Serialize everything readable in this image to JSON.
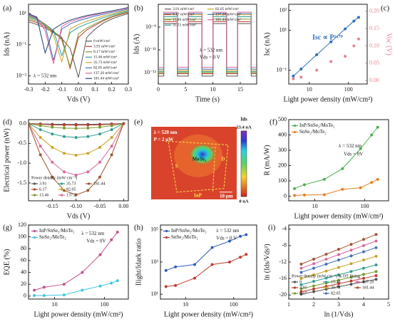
{
  "chart_data": [
    {
      "type": "line",
      "label": "(a)",
      "xlabel": "Vds (V)",
      "ylabel": "Ids (nA)",
      "xlim": [
        -0.3,
        0.3
      ],
      "xticks": [
        -0.3,
        -0.2,
        -0.1,
        {
          "value": 0,
          "label": "0.0"
        },
        0.1,
        0.2,
        0.3
      ],
      "yscale": "log",
      "ylim": [
        0.0003,
        40
      ],
      "yticks": [
        {
          "value": 0.001,
          "label": "10⁻³"
        },
        {
          "value": 0.1,
          "label": "10⁻¹"
        },
        {
          "value": 10,
          "label": "10¹"
        }
      ],
      "legend": "lower right",
      "annotations": [
        "λ = 532 nm"
      ],
      "x": [
        -0.3,
        -0.25,
        -0.2,
        -0.15,
        -0.1,
        -0.05,
        0,
        0.05,
        0.1,
        0.15,
        0.2,
        0.25,
        0.3
      ],
      "series": [
        {
          "name": "0 mW/cm²",
          "color": "#555555",
          "values": [
            3,
            2,
            1.2,
            0.6,
            0.25,
            0.06,
            0.0008,
            0.3,
            1,
            2.5,
            4.5,
            7,
            10
          ]
        },
        {
          "name": "3.91 mW/cm²",
          "color": "#c0392b",
          "values": [
            4,
            2.6,
            1.5,
            0.7,
            0.3,
            0.003,
            0.3,
            0.9,
            1.8,
            3.5,
            6,
            8.5,
            12
          ]
        },
        {
          "name": "6.17 mW/cm²",
          "color": "#7a9a2e",
          "values": [
            5,
            3.2,
            1.8,
            0.8,
            0.2,
            0.004,
            0.5,
            1.2,
            2.2,
            4,
            6.5,
            9.5,
            13
          ]
        },
        {
          "name": "15.46 mW/cm²",
          "color": "#2a9d8f",
          "values": [
            6,
            4,
            2.2,
            0.8,
            0.02,
            0.6,
            1.3,
            2.2,
            3.5,
            5.5,
            8,
            11,
            15
          ]
        },
        {
          "name": "35.73 mW/cm²",
          "color": "#c9a227",
          "values": [
            7,
            4.5,
            2.2,
            0.4,
            0.008,
            1,
            2,
            3.2,
            4.8,
            7,
            9.5,
            13,
            17
          ]
        },
        {
          "name": "82.05 mW/cm²",
          "color": "#3f6fb5",
          "values": [
            8,
            5,
            1.8,
            0.01,
            1,
            2.2,
            3.5,
            5,
            7,
            9,
            12,
            15,
            20
          ]
        },
        {
          "name": "137.20 mW/cm²",
          "color": "#d9669b",
          "values": [
            9,
            5.5,
            0.8,
            0.006,
            1.5,
            3,
            4.5,
            6.5,
            8.5,
            11,
            14,
            18,
            23
          ]
        },
        {
          "name": "181.44 mW/cm²",
          "color": "#1f3f7a",
          "values": [
            10,
            6,
            0.03,
            1,
            2.2,
            3.8,
            5.5,
            7.5,
            9.5,
            12,
            15,
            19,
            25
          ]
        }
      ]
    },
    {
      "type": "line",
      "label": "(b)",
      "xlabel": "Time (s)",
      "ylabel": "Ids (A)",
      "xlim": [
        0,
        18
      ],
      "xticks": [
        0,
        5,
        10,
        15
      ],
      "yscale": "log",
      "ylim": [
        1e-14,
        1e-07
      ],
      "yticks": [
        {
          "value": 1e-13,
          "label": "10⁻¹³"
        },
        {
          "value": 1e-11,
          "label": "10⁻¹¹"
        },
        {
          "value": 1e-09,
          "label": "10⁻⁹"
        }
      ],
      "legend": "upper center",
      "annotations": [
        "λ = 532 nm",
        "Vds = 0 V"
      ],
      "x": [
        0,
        1,
        1,
        3.5,
        3.5,
        5.5,
        5.5,
        8,
        8,
        10,
        10,
        12.5,
        12.5,
        14.5,
        14.5,
        17,
        17,
        18
      ],
      "series": [
        {
          "name": "3.91 mW/cm²",
          "color": "#555555",
          "values": [
            5e-14,
            5e-14,
            2e-09,
            2e-09,
            5e-14,
            5e-14,
            2e-09,
            2e-09,
            5e-14,
            5e-14,
            2e-09,
            2e-09,
            5e-14,
            5e-14,
            2e-09,
            2e-09,
            5e-14,
            5e-14
          ]
        },
        {
          "name": "6.17 mW/cm²",
          "color": "#c0392b",
          "values": [
            8e-14,
            8e-14,
            3e-09,
            3e-09,
            8e-14,
            8e-14,
            3e-09,
            3e-09,
            8e-14,
            8e-14,
            3e-09,
            3e-09,
            8e-14,
            8e-14,
            3e-09,
            3e-09,
            8e-14,
            8e-14
          ]
        },
        {
          "name": "15.46 mW/cm²",
          "color": "#7a9a2e",
          "values": [
            1e-13,
            1e-13,
            5e-09,
            5e-09,
            1e-13,
            1e-13,
            5e-09,
            5e-09,
            1e-13,
            1e-13,
            5e-09,
            5e-09,
            1e-13,
            1e-13,
            5e-09,
            5e-09,
            1e-13,
            1e-13
          ]
        },
        {
          "name": "35.72 mW/cm²",
          "color": "#2a9d8f",
          "values": [
            1.2e-13,
            1.2e-13,
            8e-09,
            8e-09,
            1.2e-13,
            1.2e-13,
            8e-09,
            8e-09,
            1.2e-13,
            1.2e-13,
            8e-09,
            8e-09,
            1.2e-13,
            1.2e-13,
            8e-09,
            8e-09,
            1.2e-13,
            1.2e-13
          ]
        },
        {
          "name": "82.05 mW/cm²",
          "color": "#c9a227",
          "values": [
            1.5e-13,
            1.5e-13,
            1.2e-08,
            1.2e-08,
            1.5e-13,
            1.5e-13,
            1.2e-08,
            1.2e-08,
            1.5e-13,
            1.5e-13,
            1.2e-08,
            1.2e-08,
            1.5e-13,
            1.5e-13,
            1.2e-08,
            1.2e-08,
            1.5e-13,
            1.5e-13
          ]
        },
        {
          "name": "137.20 mW/cm²",
          "color": "#3f6fb5",
          "values": [
            2e-13,
            2e-13,
            1.5e-08,
            1.5e-08,
            2e-13,
            2e-13,
            1.5e-08,
            1.5e-08,
            2e-13,
            2e-13,
            1.5e-08,
            1.5e-08,
            2e-13,
            2e-13,
            1.5e-08,
            1.5e-08,
            2e-13,
            2e-13
          ]
        },
        {
          "name": "181.44 mW/cm²",
          "color": "#d9669b",
          "values": [
            3e-13,
            3e-13,
            2e-08,
            2e-08,
            3e-13,
            3e-13,
            2e-08,
            2e-08,
            3e-13,
            3e-13,
            2e-08,
            2e-08,
            3e-13,
            3e-13,
            2e-08,
            2e-08,
            3e-13,
            3e-13
          ]
        }
      ]
    },
    {
      "type": "line",
      "label": "(c)",
      "xlabel": "Light power density (mW/cm²)",
      "ylabel": "Isc (nA)",
      "y2label": "Voc (V)",
      "xscale": "log",
      "xlim": [
        3,
        300
      ],
      "xticks": [
        10,
        100
      ],
      "yscale": "log",
      "ylim": [
        0.02,
        200
      ],
      "yticks": [
        {
          "value": 0.1,
          "label": "10⁻¹"
        },
        {
          "value": 10,
          "label": "10¹"
        },
        {
          "value": 100,
          "label": "10²"
        }
      ],
      "y2lim": [
        -0.01,
        0.22
      ],
      "y2ticks": [
        {
          "value": 0,
          "label": "0.00"
        },
        0.05,
        {
          "value": 0.1,
          "label": "0.10"
        },
        0.15,
        {
          "value": 0.2,
          "label": "0.20"
        }
      ],
      "y2color": "#e8808a",
      "annotations": [
        "Isc ∝ P¹·⁷⁹"
      ],
      "annotation_color": "#2a6ebb",
      "x": [
        3.91,
        6.17,
        15.46,
        35.73,
        82.05,
        137.2,
        181.44
      ],
      "series": [
        {
          "color": "#2a6ebb",
          "marker": true,
          "values": [
            0.05,
            0.113,
            0.59,
            2.6,
            11.6,
            28.8,
            44.1
          ]
        },
        {
          "color": "#e8808a",
          "marker": true,
          "line": false,
          "axis": "y2",
          "values": [
            0.005,
            0.01,
            0.03,
            0.055,
            0.07,
            0.1,
            0.12
          ]
        }
      ]
    },
    {
      "type": "line",
      "label": "(d)",
      "xlabel": "Vds (V)",
      "ylabel": "Electrical power (nW)",
      "xlim": [
        -0.2,
        0.01
      ],
      "xticks": [
        -0.15,
        {
          "value": -0.1,
          "label": "-0.10"
        },
        -0.05,
        {
          "value": 0,
          "label": "0.00"
        }
      ],
      "ylim": [
        -1.95,
        0.1
      ],
      "yticks": [
        {
          "value": 0,
          "label": "0.0"
        },
        -0.5,
        {
          "value": -1,
          "label": "-1.0"
        },
        -1.5
      ],
      "legend": "lower left",
      "legend_title": "Power density (mW·cm⁻²)",
      "x": [
        -0.2,
        -0.175,
        -0.15,
        -0.125,
        -0.1,
        -0.075,
        -0.05,
        -0.025,
        0
      ],
      "series": [
        {
          "name": "3.91",
          "color": "#555555",
          "marker": true,
          "values": [
            0,
            -0.009,
            -0.015,
            -0.019,
            -0.02,
            -0.019,
            -0.015,
            -0.009,
            0
          ]
        },
        {
          "name": "6.17",
          "color": "#c0392b",
          "marker": true,
          "values": [
            0,
            -0.018,
            -0.03,
            -0.038,
            -0.04,
            -0.038,
            -0.03,
            -0.018,
            0
          ]
        },
        {
          "name": "15.46",
          "color": "#7a9a2e",
          "marker": true,
          "values": [
            0,
            -0.053,
            -0.09,
            -0.113,
            -0.12,
            -0.113,
            -0.09,
            -0.053,
            0
          ]
        },
        {
          "name": "35.73",
          "color": "#2a9d8f",
          "marker": true,
          "values": [
            0,
            -0.153,
            -0.263,
            -0.328,
            -0.35,
            -0.328,
            -0.263,
            -0.153,
            0
          ]
        },
        {
          "name": "82.05",
          "color": "#c9a227",
          "marker": true,
          "values": [
            0,
            -0.35,
            -0.6,
            -0.75,
            -0.8,
            -0.75,
            -0.6,
            -0.35,
            0
          ]
        },
        {
          "name": "137.2",
          "color": "#d9669b",
          "marker": true,
          "values": [
            0,
            -0.569,
            -0.975,
            -1.219,
            -1.3,
            -1.219,
            -0.975,
            -0.569,
            0
          ]
        },
        {
          "name": "181.44",
          "color": "#a0522d",
          "marker": true,
          "values": [
            0,
            -0.788,
            -1.35,
            -1.688,
            -1.8,
            -1.688,
            -1.35,
            -0.788,
            0
          ]
        }
      ]
    },
    {
      "type": "image",
      "label": "(e)",
      "colorbar_title": "Ids",
      "colorbar_ticks": [
        {
          "value": 23.4,
          "label": "23.4 nA"
        },
        {
          "value": 0,
          "label": "0 nA"
        }
      ],
      "annotations": [
        "λ = 520 nm",
        "P = 2 μW",
        "S",
        "D",
        "MoTe₂",
        "InP",
        "10 μm"
      ]
    },
    {
      "type": "line",
      "label": "(f)",
      "xlabel": "Light power density (mW/cm²)",
      "ylabel": "R (mA/W)",
      "xscale": "log",
      "xlim": [
        3,
        300
      ],
      "xticks": [
        10,
        100
      ],
      "ylim": [
        -30,
        500
      ],
      "yticks": [
        0,
        100,
        200,
        300,
        400,
        500
      ],
      "legend": "upper left",
      "annotations": [
        "λ = 532 nm",
        "Vds = 0V"
      ],
      "x": [
        3.91,
        6.17,
        15.46,
        35.73,
        82.05,
        137.2,
        181.44
      ],
      "series": [
        {
          "name": "InP/SnSe₂/MoTe₂",
          "color": "#4caf50",
          "marker": true,
          "values": [
            50,
            75,
            110,
            180,
            310,
            400,
            450
          ]
        },
        {
          "name": "SnSe₂/MoTe₂",
          "color": "#e67e22",
          "marker": true,
          "values": [
            5,
            8,
            10,
            45,
            55,
            90,
            110
          ]
        }
      ]
    },
    {
      "type": "line",
      "label": "(g)",
      "xlabel": "Light power density (mW/cm²)",
      "ylabel": "EQE (%)",
      "xscale": "log",
      "xlim": [
        3,
        300
      ],
      "xticks": [
        10,
        100
      ],
      "ylim": [
        -5,
        120
      ],
      "yticks": [
        0,
        20,
        40,
        60,
        80,
        100,
        120
      ],
      "legend": "upper left",
      "annotations": [
        "λ = 532 nm",
        "Vds = 0V"
      ],
      "x": [
        3.91,
        6.17,
        15.46,
        35.73,
        82.05,
        137.2,
        181.44
      ],
      "series": [
        {
          "name": "InP/SnSe₂/MoTe₂",
          "color": "#c0508c",
          "marker": true,
          "values": [
            10,
            15,
            20,
            40,
            70,
            95,
            108
          ]
        },
        {
          "name": "SnSe₂/MoTe₂",
          "color": "#3ec6e0",
          "marker": true,
          "values": [
            1,
            1,
            2,
            10,
            17,
            22,
            26
          ]
        }
      ]
    },
    {
      "type": "line",
      "label": "(h)",
      "xlabel": "Light power density (mW/cm²)",
      "ylabel": "Ilight/Idark ratio",
      "xscale": "log",
      "xlim": [
        3,
        300
      ],
      "xticks": [
        10,
        100
      ],
      "yscale": "log",
      "ylim": [
        5,
        200000
      ],
      "yticks": [
        {
          "value": 10,
          "label": "10¹"
        },
        {
          "value": 1000,
          "label": "10³"
        },
        {
          "value": 100000,
          "label": "10⁵"
        }
      ],
      "legend": "upper left",
      "annotations": [
        "λ = 532 nm",
        "Vds = 0 V"
      ],
      "x": [
        3.91,
        6.17,
        15.46,
        35.73,
        82.05,
        137.2,
        181.44
      ],
      "series": [
        {
          "name": "InP/SnSe₂/MoTe₂",
          "color": "#2e5cb8",
          "marker": true,
          "values": [
            300,
            500,
            700,
            8000,
            20000,
            40000,
            50000
          ]
        },
        {
          "name": "SnSe₂/MoTe₂",
          "color": "#c0392b",
          "marker": true,
          "values": [
            30,
            35,
            100,
            700,
            1000,
            2000,
            3000
          ]
        }
      ]
    },
    {
      "type": "line",
      "label": "(i)",
      "xlabel": "ln (1/Vds)",
      "ylabel": "ln (Ids/Vds²)",
      "xlim": [
        1,
        5
      ],
      "xticks": [
        1,
        2,
        3,
        4,
        5
      ],
      "ylim": [
        -21,
        -3
      ],
      "yticks": [
        -20,
        -16,
        -12,
        -8,
        -4
      ],
      "legend": "lower right",
      "legend_title": "Power density (mW·cm⁻²) & DT fitting",
      "x": [
        1.5,
        2,
        2.5,
        3,
        3.5,
        4,
        4.5
      ],
      "series": [
        {
          "name": "0",
          "color": "#555555",
          "marker": true,
          "values": [
            -19.8,
            -19.2,
            -18.6,
            -18,
            -17.4,
            -16.8,
            -16.2
          ]
        },
        {
          "name": "3.91",
          "color": "#c0392b",
          "marker": true,
          "values": [
            -19.2,
            -18.55,
            -17.9,
            -17.25,
            -16.6,
            -15.95,
            -15.3
          ]
        },
        {
          "name": "6.17",
          "color": "#7a9a2e",
          "marker": true,
          "values": [
            -18.5,
            -17.8,
            -17.1,
            -16.4,
            -15.7,
            -15,
            -14.3
          ]
        },
        {
          "name": "15.46",
          "color": "#2a9d8f",
          "marker": true,
          "values": [
            -17.5,
            -16.7,
            -15.9,
            -15.1,
            -14.3,
            -13.5,
            -12.7
          ]
        },
        {
          "name": "35.73",
          "color": "#c9a227",
          "marker": true,
          "values": [
            -16,
            -15.1,
            -14.2,
            -13.3,
            -12.4,
            -11.5,
            -10.6
          ]
        },
        {
          "name": "82.05",
          "color": "#3f6fb5",
          "marker": true,
          "values": [
            -14.5,
            -13.5,
            -12.5,
            -11.5,
            -10.5,
            -9.5,
            -8.5
          ]
        },
        {
          "name": "137.20",
          "color": "#d9669b",
          "marker": true,
          "values": [
            -13.5,
            -12.4,
            -11.3,
            -10.2,
            -9.1,
            -8,
            -6.9
          ]
        },
        {
          "name": "181.44",
          "color": "#a0522d",
          "marker": true,
          "values": [
            -12.5,
            -11.3,
            -10.1,
            -8.9,
            -7.7,
            -6.5,
            -5.3
          ]
        }
      ]
    }
  ]
}
